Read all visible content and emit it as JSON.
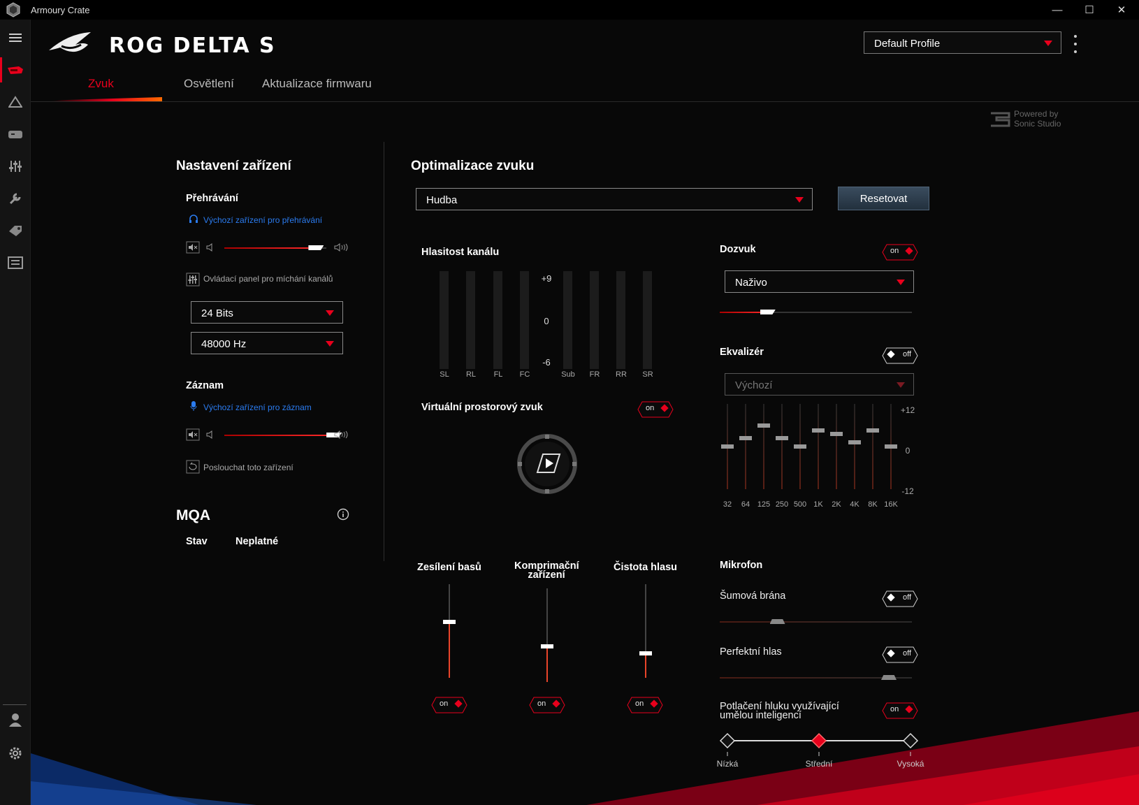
{
  "window": {
    "title": "Armoury Crate",
    "minimize": "—",
    "maximize": "☐",
    "close": "✕"
  },
  "brand": {
    "name": "ROG DELTA S"
  },
  "profile": {
    "selected": "Default Profile"
  },
  "tabs": [
    {
      "label": "Zvuk"
    },
    {
      "label": "Osvětlení"
    },
    {
      "label": "Aktualizace firmwaru"
    }
  ],
  "powered": {
    "line1": "Powered by",
    "line2": "Sonic Studio"
  },
  "device": {
    "title": "Nastavení zařízení",
    "playback": {
      "title": "Přehrávání",
      "default_link": "Výchozí zařízení pro přehrávání",
      "volume": 0.9,
      "mixer_label": "Ovládací panel pro míchání kanálů",
      "bits": "24 Bits",
      "rate": "48000 Hz"
    },
    "record": {
      "title": "Záznam",
      "default_link": "Výchozí zařízení pro záznam",
      "volume": 0.97,
      "listen_label": "Poslouchat toto zařízení"
    },
    "mqa": {
      "title": "MQA",
      "status_label": "Stav",
      "status_value": "Neplatné"
    }
  },
  "optim": {
    "title": "Optimalizace zvuku",
    "preset": "Hudba",
    "reset": "Resetovat",
    "channel": {
      "title": "Hlasitost kanálu",
      "scale": [
        "+9",
        "0",
        "-6"
      ],
      "channels": [
        "SL",
        "RL",
        "FL",
        "FC",
        "Sub",
        "FR",
        "RR",
        "SR"
      ]
    },
    "virtual": {
      "title": "Virtuální prostorový zvuk",
      "toggle": "on"
    },
    "reverb": {
      "title": "Dozvuk",
      "toggle": "on",
      "preset": "Naživo",
      "level": 0.25
    },
    "eq": {
      "title": "Ekvalizér",
      "toggle": "off",
      "preset": "Výchozí",
      "scale": [
        "+12",
        "0",
        "-12"
      ],
      "bands": [
        {
          "f": "32",
          "v": 0
        },
        {
          "f": "64",
          "v": 2.3
        },
        {
          "f": "125",
          "v": 6
        },
        {
          "f": "250",
          "v": 2.3
        },
        {
          "f": "500",
          "v": 0
        },
        {
          "f": "1K",
          "v": 4.5
        },
        {
          "f": "2K",
          "v": 3.5
        },
        {
          "f": "4K",
          "v": 1.2
        },
        {
          "f": "8K",
          "v": 4.5
        },
        {
          "f": "16K",
          "v": 0
        }
      ]
    },
    "bass": {
      "title": "Zesílení basů",
      "toggle": "on",
      "level": 0.6
    },
    "comp": {
      "title1": "Komprimační",
      "title2": "zařízení",
      "toggle": "on",
      "level": 0.38
    },
    "voice": {
      "title": "Čistota hlasu",
      "toggle": "on",
      "level": 0.26
    },
    "mic": {
      "title": "Mikrofon",
      "noise_gate": {
        "title": "Šumová brána",
        "toggle": "off",
        "level": 0.3
      },
      "perfect": {
        "title": "Perfektní hlas",
        "toggle": "off",
        "level": 0.88
      },
      "ai": {
        "title1": "Potlačení hluku využívající",
        "title2": "umělou inteligencí",
        "toggle": "on",
        "levels": [
          "Nízká",
          "Střední",
          "Vysoká"
        ],
        "selected": 1
      }
    }
  },
  "colors": {
    "accent": "#e8001c",
    "link": "#2b7cf0"
  },
  "icons": [
    "menu-icon",
    "device-icon",
    "aura-icon",
    "gamepad-icon",
    "sliders-icon",
    "wrench-icon",
    "tag-icon",
    "news-icon",
    "user-icon",
    "settings-icon"
  ]
}
